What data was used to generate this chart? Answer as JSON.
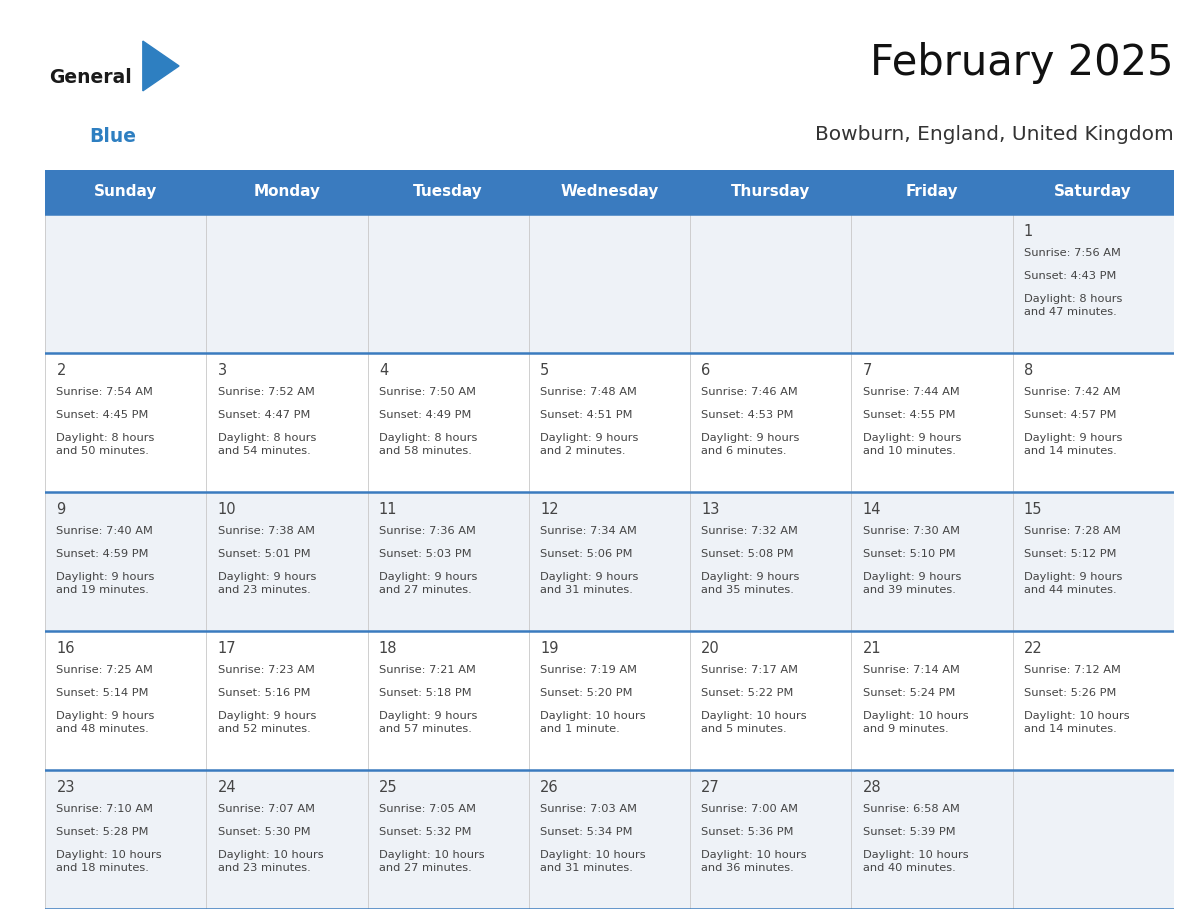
{
  "title": "February 2025",
  "subtitle": "Bowburn, England, United Kingdom",
  "days_of_week": [
    "Sunday",
    "Monday",
    "Tuesday",
    "Wednesday",
    "Thursday",
    "Friday",
    "Saturday"
  ],
  "header_bg": "#3a7bbf",
  "header_text": "#ffffff",
  "cell_bg_odd": "#eef2f7",
  "cell_bg_even": "#ffffff",
  "separator_color": "#3a7bbf",
  "text_color": "#444444",
  "title_color": "#111111",
  "subtitle_color": "#333333",
  "days": [
    {
      "day": 1,
      "col": 6,
      "row": 0,
      "sunrise": "7:56 AM",
      "sunset": "4:43 PM",
      "daylight": "8 hours\nand 47 minutes."
    },
    {
      "day": 2,
      "col": 0,
      "row": 1,
      "sunrise": "7:54 AM",
      "sunset": "4:45 PM",
      "daylight": "8 hours\nand 50 minutes."
    },
    {
      "day": 3,
      "col": 1,
      "row": 1,
      "sunrise": "7:52 AM",
      "sunset": "4:47 PM",
      "daylight": "8 hours\nand 54 minutes."
    },
    {
      "day": 4,
      "col": 2,
      "row": 1,
      "sunrise": "7:50 AM",
      "sunset": "4:49 PM",
      "daylight": "8 hours\nand 58 minutes."
    },
    {
      "day": 5,
      "col": 3,
      "row": 1,
      "sunrise": "7:48 AM",
      "sunset": "4:51 PM",
      "daylight": "9 hours\nand 2 minutes."
    },
    {
      "day": 6,
      "col": 4,
      "row": 1,
      "sunrise": "7:46 AM",
      "sunset": "4:53 PM",
      "daylight": "9 hours\nand 6 minutes."
    },
    {
      "day": 7,
      "col": 5,
      "row": 1,
      "sunrise": "7:44 AM",
      "sunset": "4:55 PM",
      "daylight": "9 hours\nand 10 minutes."
    },
    {
      "day": 8,
      "col": 6,
      "row": 1,
      "sunrise": "7:42 AM",
      "sunset": "4:57 PM",
      "daylight": "9 hours\nand 14 minutes."
    },
    {
      "day": 9,
      "col": 0,
      "row": 2,
      "sunrise": "7:40 AM",
      "sunset": "4:59 PM",
      "daylight": "9 hours\nand 19 minutes."
    },
    {
      "day": 10,
      "col": 1,
      "row": 2,
      "sunrise": "7:38 AM",
      "sunset": "5:01 PM",
      "daylight": "9 hours\nand 23 minutes."
    },
    {
      "day": 11,
      "col": 2,
      "row": 2,
      "sunrise": "7:36 AM",
      "sunset": "5:03 PM",
      "daylight": "9 hours\nand 27 minutes."
    },
    {
      "day": 12,
      "col": 3,
      "row": 2,
      "sunrise": "7:34 AM",
      "sunset": "5:06 PM",
      "daylight": "9 hours\nand 31 minutes."
    },
    {
      "day": 13,
      "col": 4,
      "row": 2,
      "sunrise": "7:32 AM",
      "sunset": "5:08 PM",
      "daylight": "9 hours\nand 35 minutes."
    },
    {
      "day": 14,
      "col": 5,
      "row": 2,
      "sunrise": "7:30 AM",
      "sunset": "5:10 PM",
      "daylight": "9 hours\nand 39 minutes."
    },
    {
      "day": 15,
      "col": 6,
      "row": 2,
      "sunrise": "7:28 AM",
      "sunset": "5:12 PM",
      "daylight": "9 hours\nand 44 minutes."
    },
    {
      "day": 16,
      "col": 0,
      "row": 3,
      "sunrise": "7:25 AM",
      "sunset": "5:14 PM",
      "daylight": "9 hours\nand 48 minutes."
    },
    {
      "day": 17,
      "col": 1,
      "row": 3,
      "sunrise": "7:23 AM",
      "sunset": "5:16 PM",
      "daylight": "9 hours\nand 52 minutes."
    },
    {
      "day": 18,
      "col": 2,
      "row": 3,
      "sunrise": "7:21 AM",
      "sunset": "5:18 PM",
      "daylight": "9 hours\nand 57 minutes."
    },
    {
      "day": 19,
      "col": 3,
      "row": 3,
      "sunrise": "7:19 AM",
      "sunset": "5:20 PM",
      "daylight": "10 hours\nand 1 minute."
    },
    {
      "day": 20,
      "col": 4,
      "row": 3,
      "sunrise": "7:17 AM",
      "sunset": "5:22 PM",
      "daylight": "10 hours\nand 5 minutes."
    },
    {
      "day": 21,
      "col": 5,
      "row": 3,
      "sunrise": "7:14 AM",
      "sunset": "5:24 PM",
      "daylight": "10 hours\nand 9 minutes."
    },
    {
      "day": 22,
      "col": 6,
      "row": 3,
      "sunrise": "7:12 AM",
      "sunset": "5:26 PM",
      "daylight": "10 hours\nand 14 minutes."
    },
    {
      "day": 23,
      "col": 0,
      "row": 4,
      "sunrise": "7:10 AM",
      "sunset": "5:28 PM",
      "daylight": "10 hours\nand 18 minutes."
    },
    {
      "day": 24,
      "col": 1,
      "row": 4,
      "sunrise": "7:07 AM",
      "sunset": "5:30 PM",
      "daylight": "10 hours\nand 23 minutes."
    },
    {
      "day": 25,
      "col": 2,
      "row": 4,
      "sunrise": "7:05 AM",
      "sunset": "5:32 PM",
      "daylight": "10 hours\nand 27 minutes."
    },
    {
      "day": 26,
      "col": 3,
      "row": 4,
      "sunrise": "7:03 AM",
      "sunset": "5:34 PM",
      "daylight": "10 hours\nand 31 minutes."
    },
    {
      "day": 27,
      "col": 4,
      "row": 4,
      "sunrise": "7:00 AM",
      "sunset": "5:36 PM",
      "daylight": "10 hours\nand 36 minutes."
    },
    {
      "day": 28,
      "col": 5,
      "row": 4,
      "sunrise": "6:58 AM",
      "sunset": "5:39 PM",
      "daylight": "10 hours\nand 40 minutes."
    }
  ],
  "num_rows": 5,
  "num_cols": 7,
  "logo_general_color": "#1a1a1a",
  "logo_blue_color": "#2e7fc1"
}
